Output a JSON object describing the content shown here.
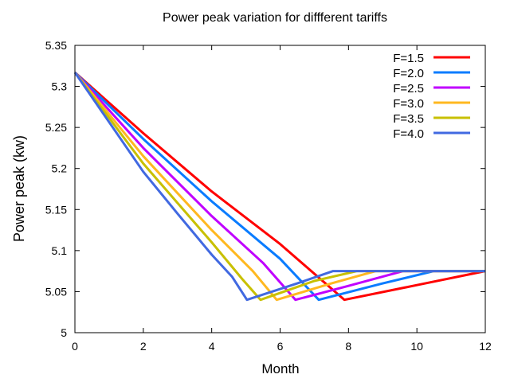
{
  "chart_data": {
    "type": "line",
    "title": "Power peak variation for diffferent tariffs",
    "xlabel": "Month",
    "ylabel": "Power peak (kw)",
    "xlim": [
      0,
      12
    ],
    "ylim": [
      5,
      5.35
    ],
    "xticks": [
      0,
      2,
      4,
      6,
      8,
      10,
      12
    ],
    "yticks": [
      5,
      5.05,
      5.1,
      5.15,
      5.2,
      5.25,
      5.3,
      5.35
    ],
    "ytick_labels": [
      "5",
      "5.05",
      "5.1",
      "5.15",
      "5.2",
      "5.25",
      "5.3",
      "5.35"
    ],
    "grid": false,
    "legend_position": "top-right",
    "series": [
      {
        "name": "F=1.5",
        "color": "#ff0000",
        "points": [
          [
            0,
            5.317
          ],
          [
            2,
            5.243
          ],
          [
            4,
            5.172
          ],
          [
            6,
            5.108
          ],
          [
            7.88,
            5.04
          ],
          [
            10,
            5.058
          ],
          [
            12,
            5.075
          ]
        ]
      },
      {
        "name": "F=2.0",
        "color": "#0a7cff",
        "points": [
          [
            0,
            5.317
          ],
          [
            2,
            5.236
          ],
          [
            4,
            5.16
          ],
          [
            6,
            5.09
          ],
          [
            7.13,
            5.04
          ],
          [
            9,
            5.06
          ],
          [
            10.5,
            5.075
          ],
          [
            12,
            5.075
          ]
        ]
      },
      {
        "name": "F=2.5",
        "color": "#c000ff",
        "points": [
          [
            0,
            5.317
          ],
          [
            2,
            5.225
          ],
          [
            4,
            5.142
          ],
          [
            5.5,
            5.085
          ],
          [
            6.45,
            5.04
          ],
          [
            8,
            5.057
          ],
          [
            9.6,
            5.075
          ],
          [
            12,
            5.075
          ]
        ]
      },
      {
        "name": "F=3.0",
        "color": "#ffb820",
        "points": [
          [
            0,
            5.317
          ],
          [
            2,
            5.215
          ],
          [
            4,
            5.125
          ],
          [
            5.2,
            5.075
          ],
          [
            5.9,
            5.04
          ],
          [
            7.5,
            5.06
          ],
          [
            8.8,
            5.075
          ],
          [
            12,
            5.075
          ]
        ]
      },
      {
        "name": "F=3.5",
        "color": "#c8c000",
        "points": [
          [
            0,
            5.317
          ],
          [
            2,
            5.206
          ],
          [
            4,
            5.11
          ],
          [
            4.9,
            5.065
          ],
          [
            5.43,
            5.04
          ],
          [
            7,
            5.063
          ],
          [
            8.25,
            5.075
          ],
          [
            12,
            5.075
          ]
        ]
      },
      {
        "name": "F=4.0",
        "color": "#4169e1",
        "points": [
          [
            0,
            5.317
          ],
          [
            2,
            5.196
          ],
          [
            3,
            5.145
          ],
          [
            4,
            5.095
          ],
          [
            4.6,
            5.068
          ],
          [
            5.03,
            5.04
          ],
          [
            6.5,
            5.06
          ],
          [
            7.55,
            5.075
          ],
          [
            12,
            5.075
          ]
        ]
      }
    ]
  }
}
